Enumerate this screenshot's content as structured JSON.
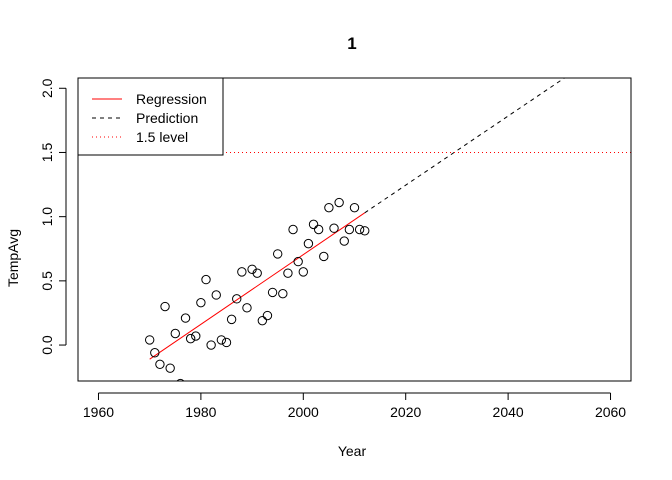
{
  "chart_data": {
    "type": "scatter",
    "title": "1",
    "xlabel": "Year",
    "ylabel": "TempAvg",
    "xlim": [
      1956,
      2064
    ],
    "ylim": [
      -0.28,
      2.08
    ],
    "x_ticks": [
      1960,
      1980,
      2000,
      2020,
      2040,
      2060
    ],
    "y_ticks": [
      0.0,
      0.5,
      1.0,
      1.5,
      2.0
    ],
    "y_tick_labels": [
      "0.0",
      "0.5",
      "1.0",
      "1.5",
      "2.0"
    ],
    "grid": false,
    "legend_position": "top-left",
    "points": {
      "x": [
        1970,
        1971,
        1972,
        1973,
        1974,
        1975,
        1976,
        1977,
        1978,
        1979,
        1980,
        1981,
        1982,
        1983,
        1984,
        1985,
        1986,
        1987,
        1988,
        1989,
        1990,
        1991,
        1992,
        1993,
        1994,
        1995,
        1996,
        1997,
        1998,
        1999,
        2000,
        2001,
        2002,
        2003,
        2004,
        2005,
        2006,
        2007,
        2008,
        2009,
        2010,
        2011,
        2012
      ],
      "y": [
        0.04,
        -0.06,
        -0.15,
        0.3,
        -0.18,
        0.09,
        -0.3,
        0.21,
        0.05,
        0.07,
        0.33,
        0.51,
        0.0,
        0.39,
        0.04,
        0.02,
        0.2,
        0.36,
        0.57,
        0.29,
        0.59,
        0.56,
        0.19,
        0.23,
        0.41,
        0.71,
        0.4,
        0.56,
        0.9,
        0.65,
        0.57,
        0.79,
        0.94,
        0.9,
        0.69,
        1.07,
        0.91,
        1.11,
        0.81,
        0.9,
        1.07,
        0.9,
        0.89
      ]
    },
    "series": [
      {
        "name": "Regression",
        "style": "solid",
        "color": "#ff0000",
        "x": [
          1970,
          2012
        ],
        "y": [
          -0.11,
          1.03
        ]
      },
      {
        "name": "Prediction",
        "style": "dashed",
        "color": "#000000",
        "x": [
          2012,
          2051
        ],
        "y": [
          1.03,
          2.08
        ]
      },
      {
        "name": "1.5 level",
        "style": "dotted",
        "color": "#ff0000",
        "x": [
          1956,
          2064
        ],
        "y": [
          1.5,
          1.5
        ]
      }
    ]
  }
}
